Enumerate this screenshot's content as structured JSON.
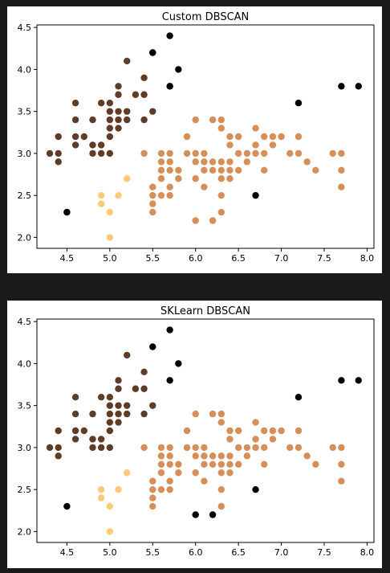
{
  "chart_data": [
    {
      "type": "scatter",
      "title": "Custom DBSCAN",
      "xlabel": "",
      "ylabel": "",
      "xlim": [
        4.15,
        8.08
      ],
      "ylim": [
        1.87,
        4.53
      ],
      "xticks": [
        4.5,
        5.0,
        5.5,
        6.0,
        6.5,
        7.0,
        7.5,
        8.0
      ],
      "xtick_labels": [
        "4.5",
        "5.0",
        "5.5",
        "6.0",
        "6.5",
        "7.0",
        "7.5",
        "8.0"
      ],
      "yticks": [
        2.0,
        2.5,
        3.0,
        3.5,
        4.0,
        4.5
      ],
      "ytick_labels": [
        "2.0",
        "2.5",
        "3.0",
        "3.5",
        "4.0",
        "4.5"
      ],
      "grid": false,
      "series": [
        {
          "color": "#5e3c25",
          "points": [
            [
              4.3,
              3.0
            ],
            [
              4.4,
              3.0
            ],
            [
              4.4,
              2.9
            ],
            [
              4.4,
              3.2
            ],
            [
              4.5,
              2.3
            ],
            [
              4.6,
              3.1
            ],
            [
              4.6,
              3.4
            ],
            [
              4.6,
              3.6
            ],
            [
              4.6,
              3.2
            ],
            [
              4.7,
              3.2
            ],
            [
              4.8,
              3.4
            ],
            [
              4.8,
              3.0
            ],
            [
              4.8,
              3.1
            ],
            [
              4.9,
              3.0
            ],
            [
              4.9,
              3.1
            ],
            [
              4.9,
              3.6
            ],
            [
              5.0,
              3.6
            ],
            [
              5.0,
              3.4
            ],
            [
              5.0,
              3.0
            ],
            [
              5.0,
              3.5
            ],
            [
              5.0,
              3.2
            ],
            [
              5.0,
              3.3
            ],
            [
              5.1,
              3.5
            ],
            [
              5.1,
              3.8
            ],
            [
              5.1,
              3.7
            ],
            [
              5.1,
              3.3
            ],
            [
              5.1,
              3.4
            ],
            [
              5.2,
              3.5
            ],
            [
              5.2,
              3.4
            ],
            [
              5.2,
              4.1
            ],
            [
              5.3,
              3.7
            ],
            [
              5.4,
              3.9
            ],
            [
              5.4,
              3.7
            ],
            [
              5.4,
              3.4
            ],
            [
              5.5,
              3.5
            ],
            [
              5.5,
              4.2
            ],
            [
              5.7,
              3.8
            ]
          ]
        },
        {
          "color": "#d68f58",
          "points": [
            [
              5.4,
              3.0
            ],
            [
              5.5,
              2.3
            ],
            [
              5.5,
              2.4
            ],
            [
              5.5,
              2.5
            ],
            [
              5.5,
              2.6
            ],
            [
              5.6,
              2.5
            ],
            [
              5.6,
              2.7
            ],
            [
              5.6,
              2.8
            ],
            [
              5.6,
              2.9
            ],
            [
              5.6,
              3.0
            ],
            [
              5.7,
              2.5
            ],
            [
              5.7,
              2.6
            ],
            [
              5.7,
              2.8
            ],
            [
              5.7,
              2.9
            ],
            [
              5.7,
              3.0
            ],
            [
              5.8,
              2.7
            ],
            [
              5.8,
              2.8
            ],
            [
              5.9,
              3.0
            ],
            [
              5.9,
              3.2
            ],
            [
              6.0,
              2.2
            ],
            [
              6.0,
              2.7
            ],
            [
              6.0,
              2.9
            ],
            [
              6.0,
              3.0
            ],
            [
              6.0,
              3.4
            ],
            [
              6.1,
              2.6
            ],
            [
              6.1,
              2.8
            ],
            [
              6.1,
              2.9
            ],
            [
              6.1,
              3.0
            ],
            [
              6.2,
              2.2
            ],
            [
              6.2,
              2.8
            ],
            [
              6.2,
              2.9
            ],
            [
              6.2,
              3.4
            ],
            [
              6.3,
              2.3
            ],
            [
              6.3,
              2.5
            ],
            [
              6.3,
              2.7
            ],
            [
              6.3,
              2.8
            ],
            [
              6.3,
              2.9
            ],
            [
              6.3,
              3.3
            ],
            [
              6.3,
              3.4
            ],
            [
              6.4,
              2.7
            ],
            [
              6.4,
              2.8
            ],
            [
              6.4,
              2.9
            ],
            [
              6.4,
              3.1
            ],
            [
              6.4,
              3.2
            ],
            [
              6.5,
              2.8
            ],
            [
              6.5,
              3.0
            ],
            [
              6.5,
              3.2
            ],
            [
              6.6,
              2.9
            ],
            [
              6.6,
              3.0
            ],
            [
              6.7,
              2.5
            ],
            [
              6.7,
              3.0
            ],
            [
              6.7,
              3.1
            ],
            [
              6.7,
              3.3
            ],
            [
              6.8,
              2.8
            ],
            [
              6.8,
              3.0
            ],
            [
              6.8,
              3.2
            ],
            [
              6.9,
              3.1
            ],
            [
              6.9,
              3.2
            ],
            [
              7.0,
              3.2
            ],
            [
              7.1,
              3.0
            ],
            [
              7.2,
              3.0
            ],
            [
              7.2,
              3.2
            ],
            [
              7.3,
              2.9
            ],
            [
              7.4,
              2.8
            ],
            [
              7.6,
              3.0
            ],
            [
              7.7,
              2.6
            ],
            [
              7.7,
              2.8
            ],
            [
              7.7,
              3.0
            ]
          ]
        },
        {
          "color": "#ffc97a",
          "points": [
            [
              4.9,
              2.4
            ],
            [
              4.9,
              2.5
            ],
            [
              5.0,
              2.3
            ],
            [
              5.0,
              2.0
            ],
            [
              5.1,
              2.5
            ],
            [
              5.2,
              2.7
            ]
          ]
        },
        {
          "color": "#000000",
          "points": [
            [
              4.5,
              2.3
            ],
            [
              5.5,
              4.2
            ],
            [
              5.7,
              4.4
            ],
            [
              5.7,
              3.8
            ],
            [
              5.8,
              4.0
            ],
            [
              6.7,
              2.5
            ],
            [
              7.2,
              3.6
            ],
            [
              7.7,
              3.8
            ],
            [
              7.9,
              3.8
            ]
          ]
        }
      ]
    },
    {
      "type": "scatter",
      "title": "SKLearn DBSCAN",
      "xlabel": "",
      "ylabel": "",
      "xlim": [
        4.15,
        8.08
      ],
      "ylim": [
        1.87,
        4.53
      ],
      "xticks": [
        4.5,
        5.0,
        5.5,
        6.0,
        6.5,
        7.0,
        7.5,
        8.0
      ],
      "xtick_labels": [
        "4.5",
        "5.0",
        "5.5",
        "6.0",
        "6.5",
        "7.0",
        "7.5",
        "8.0"
      ],
      "yticks": [
        2.0,
        2.5,
        3.0,
        3.5,
        4.0,
        4.5
      ],
      "ytick_labels": [
        "2.0",
        "2.5",
        "3.0",
        "3.5",
        "4.0",
        "4.5"
      ],
      "grid": false,
      "series": [
        {
          "color": "#5e3c25",
          "points": [
            [
              4.3,
              3.0
            ],
            [
              4.4,
              3.0
            ],
            [
              4.4,
              2.9
            ],
            [
              4.4,
              3.2
            ],
            [
              4.6,
              3.1
            ],
            [
              4.6,
              3.4
            ],
            [
              4.6,
              3.6
            ],
            [
              4.6,
              3.2
            ],
            [
              4.7,
              3.2
            ],
            [
              4.8,
              3.4
            ],
            [
              4.8,
              3.0
            ],
            [
              4.8,
              3.1
            ],
            [
              4.9,
              3.0
            ],
            [
              4.9,
              3.1
            ],
            [
              4.9,
              3.6
            ],
            [
              5.0,
              3.6
            ],
            [
              5.0,
              3.4
            ],
            [
              5.0,
              3.0
            ],
            [
              5.0,
              3.5
            ],
            [
              5.0,
              3.2
            ],
            [
              5.0,
              3.3
            ],
            [
              5.1,
              3.5
            ],
            [
              5.1,
              3.8
            ],
            [
              5.1,
              3.7
            ],
            [
              5.1,
              3.3
            ],
            [
              5.1,
              3.4
            ],
            [
              5.2,
              3.5
            ],
            [
              5.2,
              3.4
            ],
            [
              5.2,
              4.1
            ],
            [
              5.3,
              3.7
            ],
            [
              5.4,
              3.9
            ],
            [
              5.4,
              3.7
            ],
            [
              5.4,
              3.4
            ],
            [
              5.5,
              3.5
            ]
          ]
        },
        {
          "color": "#d68f58",
          "points": [
            [
              5.4,
              3.0
            ],
            [
              5.5,
              2.3
            ],
            [
              5.5,
              2.4
            ],
            [
              5.5,
              2.5
            ],
            [
              5.5,
              2.6
            ],
            [
              5.6,
              2.5
            ],
            [
              5.6,
              2.7
            ],
            [
              5.6,
              2.8
            ],
            [
              5.6,
              2.9
            ],
            [
              5.6,
              3.0
            ],
            [
              5.7,
              2.5
            ],
            [
              5.7,
              2.6
            ],
            [
              5.7,
              2.8
            ],
            [
              5.7,
              2.9
            ],
            [
              5.7,
              3.0
            ],
            [
              5.8,
              2.7
            ],
            [
              5.8,
              2.8
            ],
            [
              5.9,
              3.0
            ],
            [
              5.9,
              3.2
            ],
            [
              6.0,
              2.7
            ],
            [
              6.0,
              2.9
            ],
            [
              6.0,
              3.0
            ],
            [
              6.0,
              3.4
            ],
            [
              6.1,
              2.6
            ],
            [
              6.1,
              2.8
            ],
            [
              6.1,
              2.9
            ],
            [
              6.1,
              3.0
            ],
            [
              6.2,
              2.8
            ],
            [
              6.2,
              2.9
            ],
            [
              6.2,
              3.4
            ],
            [
              6.3,
              2.3
            ],
            [
              6.3,
              2.5
            ],
            [
              6.3,
              2.7
            ],
            [
              6.3,
              2.8
            ],
            [
              6.3,
              2.9
            ],
            [
              6.3,
              3.3
            ],
            [
              6.3,
              3.4
            ],
            [
              6.4,
              2.7
            ],
            [
              6.4,
              2.8
            ],
            [
              6.4,
              2.9
            ],
            [
              6.4,
              3.1
            ],
            [
              6.4,
              3.2
            ],
            [
              6.5,
              2.8
            ],
            [
              6.5,
              3.0
            ],
            [
              6.5,
              3.2
            ],
            [
              6.6,
              2.9
            ],
            [
              6.6,
              3.0
            ],
            [
              6.7,
              3.0
            ],
            [
              6.7,
              3.1
            ],
            [
              6.7,
              3.3
            ],
            [
              6.8,
              2.8
            ],
            [
              6.8,
              3.0
            ],
            [
              6.8,
              3.2
            ],
            [
              6.9,
              3.1
            ],
            [
              6.9,
              3.2
            ],
            [
              7.0,
              3.2
            ],
            [
              7.1,
              3.0
            ],
            [
              7.2,
              3.0
            ],
            [
              7.2,
              3.2
            ],
            [
              7.3,
              2.9
            ],
            [
              7.4,
              2.8
            ],
            [
              7.6,
              3.0
            ],
            [
              7.7,
              2.6
            ],
            [
              7.7,
              2.8
            ],
            [
              7.7,
              3.0
            ]
          ]
        },
        {
          "color": "#ffc97a",
          "points": [
            [
              4.9,
              2.4
            ],
            [
              4.9,
              2.5
            ],
            [
              5.0,
              2.3
            ],
            [
              5.0,
              2.0
            ],
            [
              5.1,
              2.5
            ],
            [
              5.2,
              2.7
            ]
          ]
        },
        {
          "color": "#000000",
          "points": [
            [
              4.5,
              2.3
            ],
            [
              5.5,
              4.2
            ],
            [
              5.7,
              4.4
            ],
            [
              5.7,
              3.8
            ],
            [
              5.8,
              4.0
            ],
            [
              6.0,
              2.2
            ],
            [
              6.2,
              2.2
            ],
            [
              6.7,
              2.5
            ],
            [
              7.2,
              3.6
            ],
            [
              7.7,
              3.8
            ],
            [
              7.9,
              3.8
            ]
          ]
        }
      ]
    }
  ]
}
